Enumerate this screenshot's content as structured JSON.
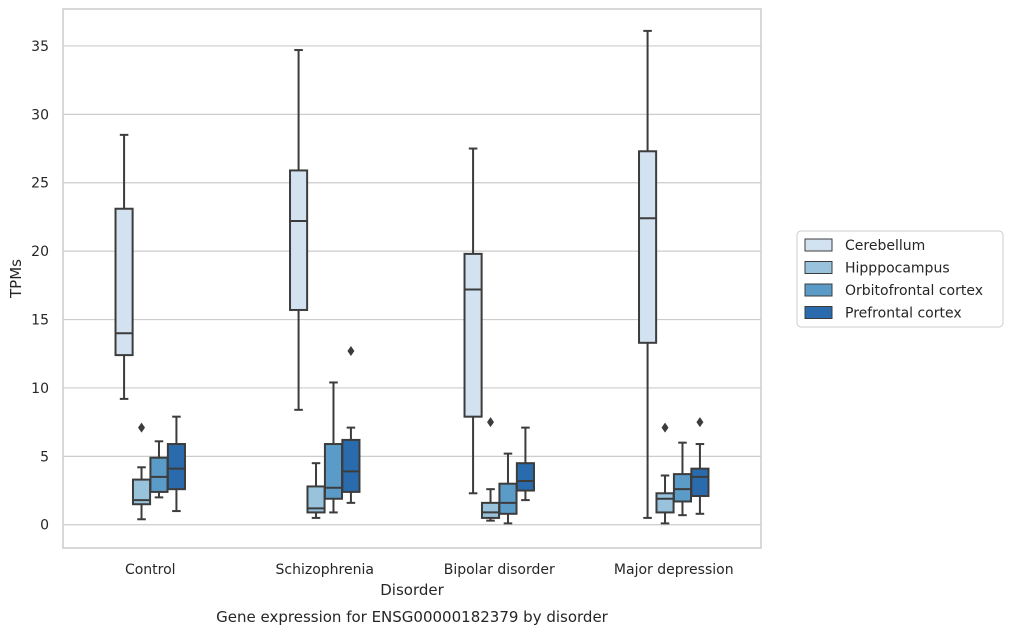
{
  "chart_data": {
    "type": "box",
    "title": "Gene expression for ENSG00000182379 by disorder",
    "xlabel": "Disorder",
    "ylabel": "TPMs",
    "ylim": [
      -1.7,
      37.7
    ],
    "yticks": [
      0,
      5,
      10,
      15,
      20,
      25,
      30,
      35
    ],
    "grid": "horizontal",
    "legend_position": "right",
    "categories": [
      "Control",
      "Schizophrenia",
      "Bipolar disorder",
      "Major depression"
    ],
    "series": [
      {
        "name": "Cerebellum",
        "color": "#d3e2f1",
        "boxes": [
          {
            "whislo": 9.2,
            "q1": 12.4,
            "med": 14.0,
            "q3": 23.1,
            "whishi": 28.5,
            "fliers": []
          },
          {
            "whislo": 8.4,
            "q1": 15.7,
            "med": 22.2,
            "q3": 25.9,
            "whishi": 34.7,
            "fliers": []
          },
          {
            "whislo": 2.3,
            "q1": 7.9,
            "med": 17.2,
            "q3": 19.8,
            "whishi": 27.5,
            "fliers": []
          },
          {
            "whislo": 0.5,
            "q1": 13.3,
            "med": 22.4,
            "q3": 27.3,
            "whishi": 36.1,
            "fliers": []
          }
        ]
      },
      {
        "name": "Hipppocampus",
        "color": "#99c3dd",
        "boxes": [
          {
            "whislo": 0.4,
            "q1": 1.5,
            "med": 1.8,
            "q3": 3.3,
            "whishi": 4.2,
            "fliers": [
              7.1
            ]
          },
          {
            "whislo": 0.5,
            "q1": 0.9,
            "med": 1.2,
            "q3": 2.8,
            "whishi": 4.5,
            "fliers": []
          },
          {
            "whislo": 0.3,
            "q1": 0.5,
            "med": 0.9,
            "q3": 1.6,
            "whishi": 2.6,
            "fliers": [
              7.5
            ]
          },
          {
            "whislo": 0.1,
            "q1": 0.9,
            "med": 1.9,
            "q3": 2.3,
            "whishi": 3.6,
            "fliers": [
              7.1
            ]
          }
        ]
      },
      {
        "name": "Orbitofrontal cortex",
        "color": "#5b9bc8",
        "boxes": [
          {
            "whislo": 2.0,
            "q1": 2.4,
            "med": 3.5,
            "q3": 4.9,
            "whishi": 6.1,
            "fliers": []
          },
          {
            "whislo": 0.9,
            "q1": 1.9,
            "med": 2.7,
            "q3": 5.9,
            "whishi": 10.4,
            "fliers": []
          },
          {
            "whislo": 0.1,
            "q1": 0.8,
            "med": 1.6,
            "q3": 3.0,
            "whishi": 5.2,
            "fliers": []
          },
          {
            "whislo": 0.7,
            "q1": 1.7,
            "med": 2.6,
            "q3": 3.7,
            "whishi": 6.0,
            "fliers": []
          }
        ]
      },
      {
        "name": "Prefrontal cortex",
        "color": "#2a6bae",
        "boxes": [
          {
            "whislo": 1.0,
            "q1": 2.6,
            "med": 4.1,
            "q3": 5.9,
            "whishi": 7.9,
            "fliers": []
          },
          {
            "whislo": 1.6,
            "q1": 2.4,
            "med": 3.9,
            "q3": 6.2,
            "whishi": 7.1,
            "fliers": [
              12.7
            ]
          },
          {
            "whislo": 1.8,
            "q1": 2.5,
            "med": 3.2,
            "q3": 4.5,
            "whishi": 7.1,
            "fliers": []
          },
          {
            "whislo": 0.8,
            "q1": 2.1,
            "med": 3.5,
            "q3": 4.1,
            "whishi": 5.9,
            "fliers": [
              7.5
            ]
          }
        ]
      }
    ]
  }
}
